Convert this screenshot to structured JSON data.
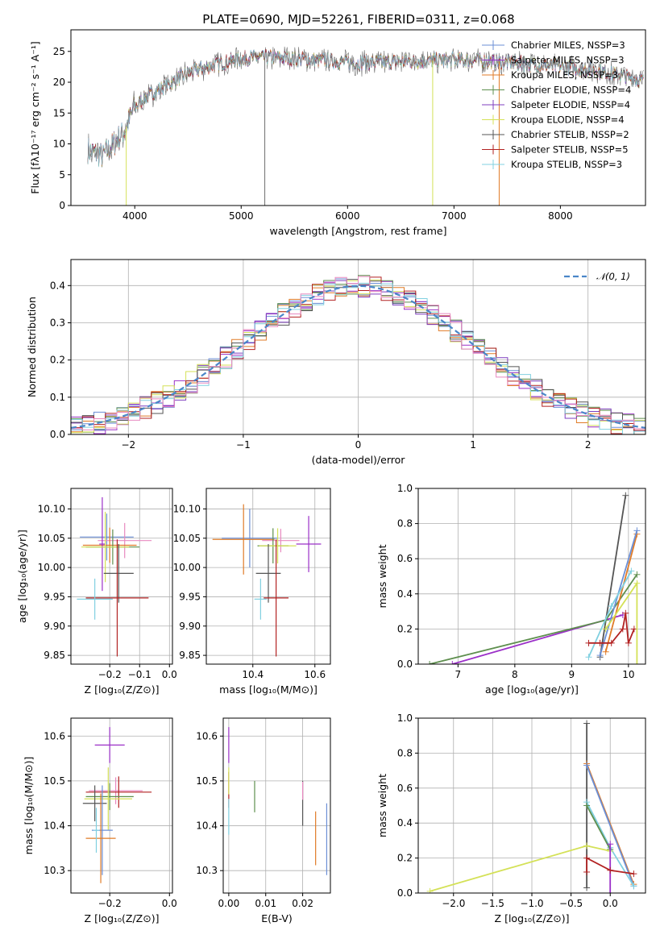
{
  "figure": {
    "title": "PLATE=0690, MJD=52261, FIBERID=0311, z=0.068"
  },
  "colors": [
    "#6b8fd6",
    "#9b30c8",
    "#e07b27",
    "#5e8f4e",
    "#7f3fbf",
    "#d4e157",
    "#555555",
    "#b22222",
    "#80d0e0"
  ],
  "chart_data": [
    {
      "id": "spectrum",
      "type": "line",
      "xlabel": "wavelength [Angstrom, rest frame]",
      "ylabel": "Flux [fλ10⁻¹⁷ erg cm⁻² s⁻¹ A⁻¹]",
      "xlim": [
        3400,
        8800
      ],
      "ylim": [
        0,
        28.5
      ],
      "xticks": [
        4000,
        5000,
        6000,
        7000,
        8000
      ],
      "yticks": [
        0,
        5,
        10,
        15,
        20,
        25
      ],
      "grid": false,
      "legend_position": "top-right",
      "series": [
        {
          "name": "Chabrier MILES, N_SSP=3",
          "color": "#6b8fd6"
        },
        {
          "name": "Salpeter MILES, N_SSP=3",
          "color": "#9b30c8"
        },
        {
          "name": "Kroupa MILES, N_SSP=3",
          "color": "#e07b27"
        },
        {
          "name": "Chabrier ELODIE, N_SSP=4",
          "color": "#5e8f4e"
        },
        {
          "name": "Salpeter ELODIE, N_SSP=4",
          "color": "#7f3fbf"
        },
        {
          "name": "Kroupa ELODIE, N_SSP=4",
          "color": "#d4e157"
        },
        {
          "name": "Chabrier STELIB, N_SSP=2",
          "color": "#555555"
        },
        {
          "name": "Salpeter STELIB, N_SSP=5",
          "color": "#b22222"
        },
        {
          "name": "Kroupa STELIB, N_SSP=3",
          "color": "#80d0e0"
        }
      ],
      "continuum": {
        "x": [
          3560,
          3700,
          3800,
          3900,
          3950,
          4000,
          4100,
          4200,
          4300,
          4400,
          4500,
          4700,
          4900,
          5100,
          5300,
          5500,
          5800,
          6000,
          6300,
          6600,
          6900,
          7200,
          7500,
          7800,
          8000,
          8200,
          8400,
          8600,
          8780
        ],
        "y": [
          9,
          8,
          10,
          12,
          14,
          16,
          17.5,
          18.5,
          19.5,
          20.5,
          21.5,
          22.5,
          23.5,
          24,
          24,
          23.8,
          23.5,
          23.2,
          23.2,
          23.4,
          23.6,
          23.6,
          23.2,
          22.8,
          22.5,
          22.2,
          21.7,
          21,
          20.2
        ]
      }
    },
    {
      "id": "residuals",
      "type": "histogram",
      "xlabel": "(data-model)/error",
      "ylabel": "Normed distribution",
      "xlim": [
        -2.5,
        2.5
      ],
      "ylim": [
        0,
        0.47
      ],
      "xticks": [
        -2,
        -1,
        0,
        1,
        2
      ],
      "yticks": [
        0.0,
        0.1,
        0.2,
        0.3,
        0.4
      ],
      "grid": true,
      "legend": "𝒩(0, 1)",
      "legend_position": "top-right",
      "bin_width": 0.1
    },
    {
      "id": "age_vs_Z",
      "type": "scatter",
      "xlabel": "Z [log₁₀(Z/Z⊙)]",
      "ylabel": "age [log₁₀(age/yr)]",
      "xlim": [
        -0.33,
        0.01
      ],
      "ylim": [
        9.835,
        10.135
      ],
      "xticks": [
        -0.2,
        -0.1,
        0.0
      ],
      "yticks": [
        9.85,
        9.9,
        9.95,
        10.0,
        10.05,
        10.1
      ],
      "grid": true,
      "points": [
        {
          "x": -0.21,
          "y": 10.052,
          "xerr": 0.09,
          "yerr": 0.04,
          "color": "#6b8fd6"
        },
        {
          "x": -0.15,
          "y": 10.046,
          "xerr": 0.09,
          "yerr": 0.03,
          "color": "#e889c0"
        },
        {
          "x": -0.2,
          "y": 10.038,
          "xerr": 0.09,
          "yerr": 0.03,
          "color": "#e07b27"
        },
        {
          "x": -0.19,
          "y": 10.035,
          "xerr": 0.09,
          "yerr": 0.03,
          "color": "#5e8f4e"
        },
        {
          "x": -0.225,
          "y": 10.04,
          "xerr": 0.01,
          "yerr": 0.08,
          "color": "#9b30c8"
        },
        {
          "x": -0.215,
          "y": 10.035,
          "xerr": 0.08,
          "yerr": 0.06,
          "color": "#d4e157"
        },
        {
          "x": -0.17,
          "y": 9.99,
          "xerr": 0.05,
          "yerr": 0.05,
          "color": "#555555"
        },
        {
          "x": -0.175,
          "y": 9.948,
          "xerr": 0.105,
          "yerr": 0.1,
          "color": "#b22222"
        },
        {
          "x": -0.25,
          "y": 9.946,
          "xerr": 0.06,
          "yerr": 0.035,
          "color": "#80d0e0"
        }
      ]
    },
    {
      "id": "age_vs_mass",
      "type": "scatter",
      "xlabel": "mass [log₁₀(M/M⊙)]",
      "xlim": [
        10.25,
        10.65
      ],
      "ylim": [
        9.835,
        10.135
      ],
      "xticks": [
        10.4,
        10.6
      ],
      "yticks": [
        9.85,
        9.9,
        9.95,
        10.0,
        10.05,
        10.1
      ],
      "grid": true,
      "points": [
        {
          "x": 10.39,
          "y": 10.05,
          "xerr": 0.09,
          "yerr": 0.05,
          "color": "#6b8fd6"
        },
        {
          "x": 10.37,
          "y": 10.048,
          "xerr": 0.1,
          "yerr": 0.06,
          "color": "#e07b27"
        },
        {
          "x": 10.49,
          "y": 10.046,
          "xerr": 0.06,
          "yerr": 0.02,
          "color": "#e889c0"
        },
        {
          "x": 10.58,
          "y": 10.04,
          "xerr": 0.04,
          "yerr": 0.048,
          "color": "#9b30c8"
        },
        {
          "x": 10.465,
          "y": 10.037,
          "xerr": 0.05,
          "yerr": 0.03,
          "color": "#5e8f4e"
        },
        {
          "x": 10.48,
          "y": 10.037,
          "xerr": 0.06,
          "yerr": 0.03,
          "color": "#d4e157"
        },
        {
          "x": 10.45,
          "y": 9.99,
          "xerr": 0.04,
          "yerr": 0.05,
          "color": "#555555"
        },
        {
          "x": 10.475,
          "y": 9.948,
          "xerr": 0.04,
          "yerr": 0.1,
          "color": "#b22222"
        },
        {
          "x": 10.425,
          "y": 9.946,
          "xerr": 0.02,
          "yerr": 0.035,
          "color": "#80d0e0"
        }
      ]
    },
    {
      "id": "weight_vs_age",
      "type": "line",
      "xlabel": "age [log₁₀(age/yr)]",
      "ylabel": "mass weight",
      "xlim": [
        6.3,
        10.3
      ],
      "ylim": [
        0,
        1
      ],
      "xticks": [
        7,
        8,
        9,
        10
      ],
      "yticks": [
        0.0,
        0.2,
        0.4,
        0.6,
        0.8,
        1.0
      ],
      "grid": true,
      "series": [
        {
          "color": "#555555",
          "x": [
            9.5,
            9.95
          ],
          "y": [
            0.04,
            0.96
          ]
        },
        {
          "color": "#9b30c8",
          "x": [
            6.9,
            9.9
          ],
          "y": [
            0.0,
            0.28
          ]
        },
        {
          "color": "#5e8f4e",
          "x": [
            6.5,
            9.6,
            10.15
          ],
          "y": [
            0.0,
            0.25,
            0.51
          ]
        },
        {
          "color": "#e07b27",
          "x": [
            9.6,
            10.15
          ],
          "y": [
            0.07,
            0.74
          ]
        },
        {
          "color": "#6b8fd6",
          "x": [
            9.5,
            10.15
          ],
          "y": [
            0.05,
            0.76
          ]
        },
        {
          "color": "#80d0e0",
          "x": [
            9.3,
            9.7,
            10.05
          ],
          "y": [
            0.04,
            0.33,
            0.53
          ]
        },
        {
          "color": "#b22222",
          "x": [
            9.3,
            9.5,
            9.7,
            9.9,
            9.95,
            10.0,
            10.1
          ],
          "y": [
            0.12,
            0.12,
            0.12,
            0.2,
            0.29,
            0.12,
            0.2
          ]
        },
        {
          "color": "#d4e157",
          "x": [
            9.6,
            10.15,
            10.15
          ],
          "y": [
            0.2,
            0.46,
            0.0
          ]
        }
      ]
    },
    {
      "id": "mass_vs_Z",
      "type": "scatter",
      "xlabel": "Z [log₁₀(Z/Z⊙)]",
      "ylabel": "mass [log₁₀(M/M⊙)]",
      "xlim": [
        -0.33,
        0.01
      ],
      "ylim": [
        10.25,
        10.64
      ],
      "xticks": [
        -0.2,
        0.0
      ],
      "yticks": [
        10.3,
        10.4,
        10.5,
        10.6
      ],
      "grid": true,
      "points": [
        {
          "x": -0.2,
          "y": 10.58,
          "xerr": 0.05,
          "yerr": 0.04,
          "color": "#9b30c8"
        },
        {
          "x": -0.18,
          "y": 10.478,
          "xerr": 0.09,
          "yerr": 0.03,
          "color": "#e889c0"
        },
        {
          "x": -0.17,
          "y": 10.475,
          "xerr": 0.11,
          "yerr": 0.035,
          "color": "#b22222"
        },
        {
          "x": -0.2,
          "y": 10.465,
          "xerr": 0.08,
          "yerr": 0.03,
          "color": "#5e8f4e"
        },
        {
          "x": -0.205,
          "y": 10.46,
          "xerr": 0.08,
          "yerr": 0.07,
          "color": "#d4e157"
        },
        {
          "x": -0.25,
          "y": 10.45,
          "xerr": 0.04,
          "yerr": 0.04,
          "color": "#555555"
        },
        {
          "x": -0.225,
          "y": 10.39,
          "xerr": 0.035,
          "yerr": 0.1,
          "color": "#6b8fd6"
        },
        {
          "x": -0.23,
          "y": 10.372,
          "xerr": 0.05,
          "yerr": 0.1,
          "color": "#e07b27"
        },
        {
          "x": -0.245,
          "y": 10.39,
          "xerr": 0.01,
          "yerr": 0.05,
          "color": "#80d0e0"
        }
      ]
    },
    {
      "id": "mass_vs_EBV",
      "type": "scatter",
      "xlabel": "E(B-V)",
      "xlim": [
        -0.0015,
        0.0275
      ],
      "ylim": [
        10.25,
        10.64
      ],
      "xticks": [
        0.0,
        0.01,
        0.02
      ],
      "yticks": [
        10.3,
        10.4,
        10.5,
        10.6
      ],
      "grid": true,
      "points": [
        {
          "x": 0.0,
          "y": 10.58,
          "yerr": 0.04,
          "color": "#9b30c8"
        },
        {
          "x": 0.0,
          "y": 10.48,
          "yerr": 0.04,
          "color": "#b22222"
        },
        {
          "x": 0.0,
          "y": 10.42,
          "yerr": 0.04,
          "color": "#80d0e0"
        },
        {
          "x": 0.0,
          "y": 10.5,
          "yerr": 0.03,
          "color": "#d4e157"
        },
        {
          "x": 0.007,
          "y": 10.465,
          "yerr": 0.035,
          "color": "#5e8f4e"
        },
        {
          "x": 0.02,
          "y": 10.45,
          "yerr": 0.05,
          "color": "#555555"
        },
        {
          "x": 0.02,
          "y": 10.478,
          "yerr": 0.02,
          "color": "#e889c0"
        },
        {
          "x": 0.0235,
          "y": 10.372,
          "yerr": 0.06,
          "color": "#e07b27"
        },
        {
          "x": 0.0265,
          "y": 10.37,
          "yerr": 0.08,
          "color": "#6b8fd6"
        }
      ]
    },
    {
      "id": "weight_vs_Z",
      "type": "line",
      "xlabel": "Z [log₁₀(Z/Z⊙)]",
      "ylabel": "mass weight",
      "xlim": [
        -2.45,
        0.45
      ],
      "ylim": [
        0,
        1
      ],
      "xticks": [
        -2.0,
        -1.5,
        -1.0,
        -0.5,
        0.0
      ],
      "yticks": [
        0.0,
        0.2,
        0.4,
        0.6,
        0.8,
        1.0
      ],
      "grid": true,
      "series": [
        {
          "color": "#555555",
          "x": [
            -0.3,
            -0.3
          ],
          "y": [
            0.03,
            0.97
          ]
        },
        {
          "color": "#e07b27",
          "x": [
            -0.3,
            0.3
          ],
          "y": [
            0.74,
            0.05
          ]
        },
        {
          "color": "#6b8fd6",
          "x": [
            -0.3,
            0.3
          ],
          "y": [
            0.73,
            0.04
          ]
        },
        {
          "color": "#80d0e0",
          "x": [
            -0.3,
            0.0,
            0.3
          ],
          "y": [
            0.52,
            0.26,
            0.04
          ]
        },
        {
          "color": "#5e8f4e",
          "x": [
            -0.3,
            0.0
          ],
          "y": [
            0.5,
            0.25
          ]
        },
        {
          "color": "#d4e157",
          "x": [
            -2.3,
            -0.3,
            0.0
          ],
          "y": [
            0.01,
            0.27,
            0.24
          ]
        },
        {
          "color": "#9b30c8",
          "x": [
            0.0,
            0.0
          ],
          "y": [
            0.0,
            0.28
          ]
        },
        {
          "color": "#b22222",
          "x": [
            -0.3,
            -0.3,
            0.0,
            0.3
          ],
          "y": [
            0.12,
            0.2,
            0.13,
            0.11
          ]
        }
      ]
    }
  ]
}
